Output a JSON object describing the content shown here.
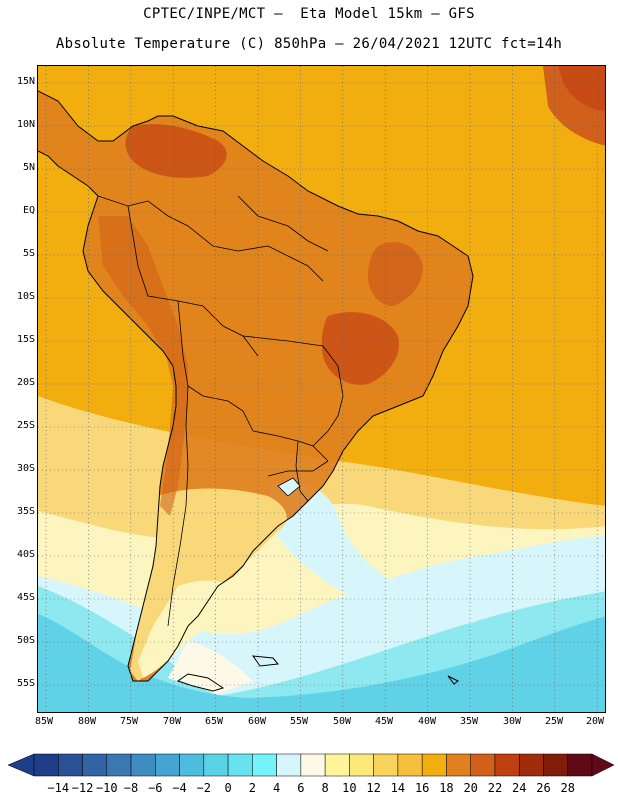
{
  "title": {
    "line1": "CPTEC/INPE/MCT –  Eta Model 15km – GFS",
    "line2": "Absolute Temperature (C) 850hPa – 26/04/2021 12UTC fct=14h"
  },
  "map": {
    "lat_labels": [
      "15N",
      "10N",
      "5N",
      "EQ",
      "5S",
      "10S",
      "15S",
      "20S",
      "25S",
      "30S",
      "35S",
      "40S",
      "45S",
      "50S",
      "55S"
    ],
    "lon_labels": [
      "85W",
      "80W",
      "75W",
      "70W",
      "65W",
      "60W",
      "55W",
      "50W",
      "45W",
      "40W",
      "35W",
      "30W",
      "25W",
      "20W"
    ],
    "colors": {
      "ocean_warm": "#f2ae0e",
      "land_hot": "#e0801e",
      "land_hotter": "#d0601a",
      "hottest": "#c84a14",
      "mild": "#f8d878",
      "cool": "#fdf5c0",
      "cream": "#fef8e6",
      "pale_cyan": "#d6f6fb",
      "cyan": "#8de8f0",
      "teal": "#5fd2e8",
      "coast": "#000000"
    }
  },
  "colorbar": {
    "labels": [
      "-14",
      "-12",
      "-10",
      "-8",
      "-6",
      "-4",
      "-2",
      "0",
      "2",
      "4",
      "6",
      "8",
      "10",
      "12",
      "14",
      "16",
      "18",
      "20",
      "22",
      "24",
      "26",
      "28"
    ],
    "colors": [
      "#1e3e8a",
      "#2a5096",
      "#3264a6",
      "#3a78b4",
      "#3e8cc2",
      "#46a4d2",
      "#4ebcdc",
      "#5ad2e6",
      "#66e2f0",
      "#74f4fa",
      "#d6f6fb",
      "#fef8e6",
      "#fef59a",
      "#fde87a",
      "#f9d45c",
      "#f4c03e",
      "#f2ae0e",
      "#e0801e",
      "#d0601a",
      "#c04012",
      "#a02c0c",
      "#801c0a",
      "#600a18"
    ]
  }
}
